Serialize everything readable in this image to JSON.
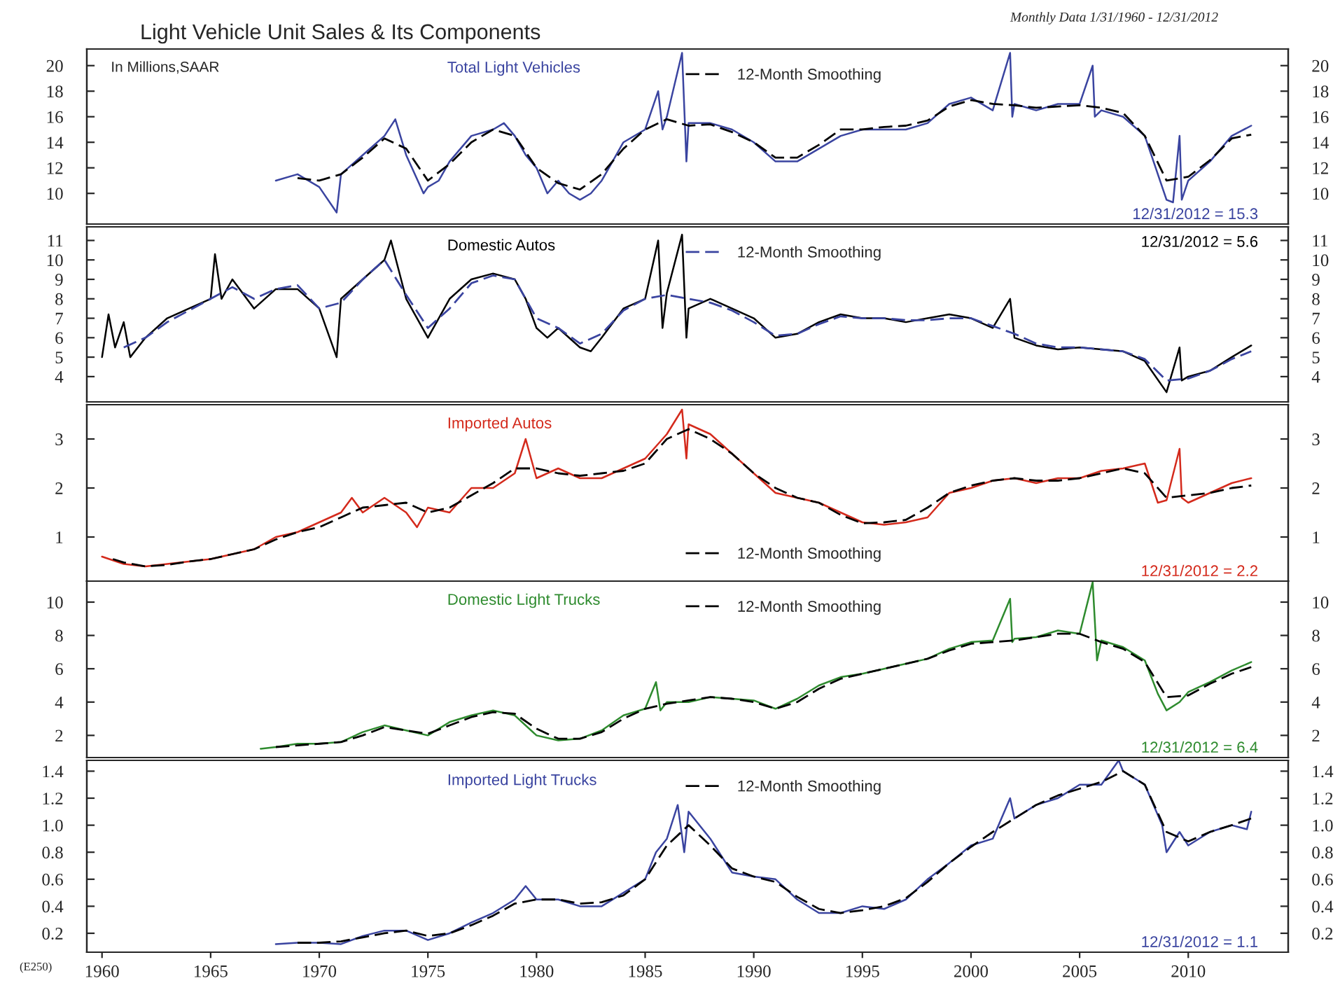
{
  "chart_data": [
    {
      "type": "line",
      "title": "Light Vehicle Unit Sales & Its Components",
      "subtitle": "Monthly Data 1/31/1960 - 12/31/2012",
      "ylabel": "In Millions,SAAR",
      "legend": "top",
      "tick_labels": "y",
      "xlim": [
        1959.3,
        2014.6
      ],
      "xticks": [
        1960,
        1965,
        1970,
        1975,
        1980,
        1985,
        1990,
        1995,
        2000,
        2005,
        2010
      ],
      "ylim": [
        7.6,
        21.3
      ],
      "yticks": [
        10,
        12,
        14,
        16,
        18,
        20
      ],
      "y2lim": [
        7.6,
        21.3
      ],
      "y2ticks": [
        10,
        12,
        14,
        16,
        18,
        20
      ],
      "annotations": [
        "12/31/2012 = 15.3"
      ],
      "series": [
        {
          "name": "Total Light Vehicles",
          "color": "#3a44a0",
          "line_style": "solid",
          "x": [
            1968,
            1969,
            1970,
            1970.8,
            1971,
            1972,
            1973,
            1973.5,
            1974,
            1974.8,
            1975,
            1975.5,
            1976,
            1977,
            1978,
            1978.5,
            1979,
            1979.5,
            1980,
            1980.5,
            1981,
            1981.5,
            1982,
            1982.5,
            1983,
            1983.5,
            1984,
            1985,
            1985.6,
            1985.8,
            1986,
            1986.7,
            1986.9,
            1987,
            1988,
            1989,
            1990,
            1991,
            1992,
            1993,
            1994,
            1995,
            1996,
            1997,
            1998,
            1999,
            2000,
            2001,
            2001.8,
            2001.9,
            2002,
            2003,
            2004,
            2005,
            2005.6,
            2005.7,
            2006,
            2007,
            2008,
            2008.5,
            2009,
            2009.3,
            2009.6,
            2009.7,
            2010,
            2011,
            2012,
            2012.9
          ],
          "values": [
            11.0,
            11.5,
            10.5,
            8.5,
            11.5,
            13,
            14.5,
            15.8,
            13,
            10,
            10.5,
            11,
            12.5,
            14.5,
            15,
            15.5,
            14.5,
            13,
            12,
            10,
            11,
            10,
            9.5,
            10,
            11,
            12.5,
            14,
            15,
            18,
            15,
            16,
            21,
            12.5,
            15.5,
            15.5,
            15,
            14,
            12.5,
            12.5,
            13.5,
            14.5,
            15,
            15,
            15,
            15.5,
            17,
            17.5,
            16.5,
            21,
            16,
            17,
            16.5,
            17,
            17,
            20,
            16,
            16.5,
            16,
            14.5,
            12,
            9.5,
            9.3,
            14.5,
            9.5,
            11,
            12.5,
            14.5,
            15.3
          ]
        },
        {
          "name": "12-Month Smoothing",
          "color": "#000000",
          "line_style": "dashed",
          "x": [
            1969,
            1970,
            1971,
            1972,
            1973,
            1974,
            1975,
            1976,
            1977,
            1978,
            1979,
            1980,
            1981,
            1982,
            1983,
            1984,
            1985,
            1986,
            1987,
            1988,
            1989,
            1990,
            1991,
            1992,
            1993,
            1994,
            1995,
            1996,
            1997,
            1998,
            1999,
            2000,
            2001,
            2002,
            2003,
            2004,
            2005,
            2006,
            2007,
            2008,
            2009,
            2010,
            2011,
            2012,
            2012.9
          ],
          "values": [
            11.2,
            11,
            11.5,
            12.8,
            14.3,
            13.5,
            11,
            12.3,
            14,
            15,
            14.5,
            12,
            10.8,
            10.3,
            11.5,
            13.5,
            15,
            15.8,
            15.3,
            15.4,
            14.8,
            14,
            12.8,
            12.8,
            13.8,
            15,
            15,
            15.2,
            15.3,
            15.7,
            16.8,
            17.3,
            17,
            16.9,
            16.7,
            16.8,
            16.9,
            16.7,
            16.3,
            14.5,
            11,
            11.3,
            12.6,
            14.3,
            14.6
          ]
        }
      ]
    },
    {
      "type": "line",
      "legend": "top",
      "tick_labels": "y",
      "xlim": [
        1959.3,
        2014.6
      ],
      "xticks": [
        1960,
        1965,
        1970,
        1975,
        1980,
        1985,
        1990,
        1995,
        2000,
        2005,
        2010
      ],
      "ylim": [
        2.7,
        11.7
      ],
      "yticks": [
        4,
        5,
        6,
        7,
        8,
        9,
        10,
        11
      ],
      "y2lim": [
        2.7,
        11.7
      ],
      "y2ticks": [
        4,
        5,
        6,
        7,
        8,
        9,
        10,
        11
      ],
      "annotations": [
        "12/31/2012 = 5.6"
      ],
      "series": [
        {
          "name": "Domestic Autos",
          "color": "#000000",
          "line_style": "solid",
          "x": [
            1960,
            1960.3,
            1960.6,
            1961,
            1961.3,
            1962,
            1963,
            1964,
            1965,
            1965.2,
            1965.5,
            1966,
            1967,
            1968,
            1969,
            1970,
            1970.8,
            1971,
            1972,
            1973,
            1973.3,
            1974,
            1974.5,
            1975,
            1975.5,
            1976,
            1977,
            1978,
            1979,
            1979.5,
            1980,
            1980.5,
            1981,
            1982,
            1982.5,
            1983,
            1984,
            1985,
            1985.6,
            1985.8,
            1986,
            1986.7,
            1986.9,
            1987,
            1988,
            1989,
            1990,
            1991,
            1992,
            1993,
            1994,
            1995,
            1996,
            1997,
            1998,
            1999,
            2000,
            2001,
            2001.8,
            2002,
            2003,
            2004,
            2005,
            2006,
            2007,
            2008,
            2009,
            2009.6,
            2009.7,
            2010,
            2011,
            2012,
            2012.9
          ],
          "values": [
            5.0,
            7.2,
            5.5,
            6.8,
            5,
            6,
            7,
            7.5,
            8,
            10.3,
            8,
            9,
            7.5,
            8.5,
            8.5,
            7.5,
            5,
            8,
            9,
            10,
            11,
            8,
            7,
            6,
            7,
            8,
            9,
            9.3,
            9,
            8,
            6.5,
            6,
            6.5,
            5.5,
            5.3,
            6,
            7.5,
            8,
            11,
            6.5,
            8.3,
            11.3,
            6,
            7.5,
            8,
            7.5,
            7,
            6,
            6.2,
            6.8,
            7.2,
            7,
            7,
            6.8,
            7,
            7.2,
            7,
            6.5,
            8,
            6,
            5.6,
            5.4,
            5.5,
            5.4,
            5.3,
            4.8,
            3.2,
            5.5,
            3.8,
            4,
            4.3,
            5,
            5.6
          ]
        },
        {
          "name": "12-Month Smoothing",
          "color": "#3a44a0",
          "line_style": "dashed",
          "x": [
            1961,
            1962,
            1963,
            1964,
            1965,
            1966,
            1967,
            1968,
            1969,
            1970,
            1971,
            1972,
            1973,
            1974,
            1975,
            1976,
            1977,
            1978,
            1979,
            1980,
            1981,
            1982,
            1983,
            1984,
            1985,
            1986,
            1987,
            1988,
            1989,
            1990,
            1991,
            1992,
            1993,
            1994,
            1995,
            1996,
            1997,
            1998,
            1999,
            2000,
            2001,
            2002,
            2003,
            2004,
            2005,
            2006,
            2007,
            2008,
            2009,
            2010,
            2011,
            2012,
            2012.9
          ],
          "values": [
            5.5,
            6,
            6.8,
            7.4,
            8,
            8.6,
            8,
            8.5,
            8.7,
            7.5,
            7.8,
            9,
            10,
            8.2,
            6.5,
            7.5,
            8.8,
            9.2,
            9,
            7,
            6.5,
            5.7,
            6.2,
            7.4,
            8,
            8.2,
            8,
            7.8,
            7.4,
            6.8,
            6.1,
            6.2,
            6.7,
            7.1,
            7,
            7,
            6.9,
            6.9,
            7,
            7,
            6.6,
            6.2,
            5.7,
            5.5,
            5.5,
            5.4,
            5.3,
            4.9,
            3.8,
            3.9,
            4.3,
            4.9,
            5.3
          ]
        }
      ]
    },
    {
      "type": "line",
      "legend": "bottom",
      "tick_labels": "y",
      "xlim": [
        1959.3,
        2014.6
      ],
      "xticks": [
        1960,
        1965,
        1970,
        1975,
        1980,
        1985,
        1990,
        1995,
        2000,
        2005,
        2010
      ],
      "ylim": [
        0.1,
        3.7
      ],
      "yticks": [
        1,
        2,
        3
      ],
      "y2lim": [
        0.1,
        3.7
      ],
      "y2ticks": [
        1,
        2,
        3
      ],
      "annotations": [
        "12/31/2012 = 2.2"
      ],
      "series": [
        {
          "name": "Imported Autos",
          "color": "#d42a1c",
          "line_style": "solid",
          "x": [
            1960,
            1961,
            1962,
            1963,
            1964,
            1965,
            1966,
            1967,
            1968,
            1969,
            1970,
            1971,
            1971.5,
            1972,
            1973,
            1974,
            1974.5,
            1975,
            1976,
            1977,
            1978,
            1979,
            1979.5,
            1980,
            1981,
            1982,
            1983,
            1984,
            1985,
            1986,
            1986.7,
            1986.9,
            1987,
            1988,
            1989,
            1990,
            1991,
            1992,
            1993,
            1994,
            1995,
            1996,
            1997,
            1998,
            1999,
            2000,
            2001,
            2002,
            2003,
            2004,
            2005,
            2006,
            2007,
            2008,
            2008.6,
            2009,
            2009.6,
            2009.7,
            2010,
            2011,
            2012,
            2012.9
          ],
          "values": [
            0.6,
            0.45,
            0.4,
            0.45,
            0.5,
            0.55,
            0.65,
            0.75,
            1.0,
            1.1,
            1.3,
            1.5,
            1.8,
            1.5,
            1.8,
            1.5,
            1.2,
            1.6,
            1.5,
            2.0,
            2.0,
            2.3,
            3.0,
            2.2,
            2.4,
            2.2,
            2.2,
            2.4,
            2.6,
            3.1,
            3.6,
            2.6,
            3.3,
            3.1,
            2.7,
            2.3,
            1.9,
            1.8,
            1.7,
            1.5,
            1.3,
            1.25,
            1.3,
            1.4,
            1.9,
            2.0,
            2.15,
            2.2,
            2.1,
            2.2,
            2.2,
            2.35,
            2.4,
            2.5,
            1.7,
            1.75,
            2.8,
            1.8,
            1.7,
            1.9,
            2.1,
            2.2
          ]
        },
        {
          "name": "12-Month Smoothing",
          "color": "#000000",
          "line_style": "dashed",
          "x": [
            1960.5,
            1961,
            1962,
            1963,
            1964,
            1965,
            1966,
            1967,
            1968,
            1969,
            1970,
            1971,
            1972,
            1973,
            1974,
            1975,
            1976,
            1977,
            1978,
            1979,
            1980,
            1981,
            1982,
            1983,
            1984,
            1985,
            1986,
            1987,
            1988,
            1989,
            1990,
            1991,
            1992,
            1993,
            1994,
            1995,
            1996,
            1997,
            1998,
            1999,
            2000,
            2001,
            2002,
            2003,
            2004,
            2005,
            2006,
            2007,
            2008,
            2009,
            2010,
            2011,
            2012,
            2012.9
          ],
          "values": [
            0.55,
            0.48,
            0.4,
            0.43,
            0.5,
            0.55,
            0.65,
            0.75,
            0.95,
            1.1,
            1.2,
            1.4,
            1.6,
            1.65,
            1.7,
            1.5,
            1.6,
            1.85,
            2.1,
            2.4,
            2.4,
            2.3,
            2.25,
            2.3,
            2.35,
            2.5,
            3.0,
            3.2,
            3.0,
            2.7,
            2.3,
            2.0,
            1.8,
            1.7,
            1.45,
            1.28,
            1.3,
            1.35,
            1.6,
            1.9,
            2.05,
            2.15,
            2.2,
            2.15,
            2.15,
            2.2,
            2.3,
            2.4,
            2.3,
            1.8,
            1.85,
            1.9,
            2.0,
            2.05
          ]
        }
      ]
    },
    {
      "type": "line",
      "legend": "top",
      "tick_labels": "y",
      "xlim": [
        1959.3,
        2014.6
      ],
      "xticks": [
        1960,
        1965,
        1970,
        1975,
        1980,
        1985,
        1990,
        1995,
        2000,
        2005,
        2010
      ],
      "ylim": [
        0.67,
        11.26
      ],
      "yticks": [
        2,
        4,
        6,
        8,
        10
      ],
      "y2lim": [
        0.67,
        11.26
      ],
      "y2ticks": [
        2,
        4,
        6,
        8,
        10
      ],
      "annotations": [
        "12/31/2012 = 6.4"
      ],
      "series": [
        {
          "name": "Domestic Light Trucks",
          "color": "#2e8b2e",
          "line_style": "solid",
          "x": [
            1967.3,
            1968,
            1969,
            1970,
            1971,
            1972,
            1973,
            1974,
            1975,
            1976,
            1977,
            1978,
            1979,
            1980,
            1981,
            1982,
            1983,
            1984,
            1985,
            1985.5,
            1985.7,
            1986,
            1987,
            1988,
            1989,
            1990,
            1991,
            1992,
            1993,
            1994,
            1995,
            1996,
            1997,
            1998,
            1999,
            2000,
            2001,
            2001.8,
            2001.9,
            2002,
            2003,
            2004,
            2005,
            2005.6,
            2005.8,
            2006,
            2007,
            2008,
            2008.6,
            2009,
            2009.6,
            2010,
            2011,
            2012,
            2012.9
          ],
          "values": [
            1.2,
            1.3,
            1.5,
            1.5,
            1.6,
            2.2,
            2.6,
            2.3,
            2.0,
            2.8,
            3.2,
            3.5,
            3.2,
            2.0,
            1.7,
            1.8,
            2.3,
            3.2,
            3.6,
            5.2,
            3.5,
            4,
            4,
            4.3,
            4.2,
            4.1,
            3.6,
            4.2,
            5,
            5.5,
            5.7,
            6,
            6.3,
            6.6,
            7.2,
            7.6,
            7.7,
            10.2,
            7.6,
            7.8,
            7.9,
            8.3,
            8.1,
            11.2,
            6.5,
            7.7,
            7.3,
            6.5,
            4.5,
            3.5,
            4.0,
            4.6,
            5.2,
            5.9,
            6.4
          ]
        },
        {
          "name": "12-Month Smoothing",
          "color": "#000000",
          "line_style": "dashed",
          "x": [
            1968,
            1970,
            1971,
            1972,
            1973,
            1974,
            1975,
            1976,
            1977,
            1978,
            1979,
            1980,
            1981,
            1982,
            1983,
            1984,
            1985,
            1986,
            1987,
            1988,
            1989,
            1990,
            1991,
            1992,
            1993,
            1994,
            1995,
            1996,
            1997,
            1998,
            1999,
            2000,
            2001,
            2002,
            2003,
            2004,
            2005,
            2006,
            2007,
            2008,
            2009,
            2010,
            2011,
            2012,
            2012.9
          ],
          "values": [
            1.3,
            1.5,
            1.6,
            2.0,
            2.5,
            2.3,
            2.1,
            2.6,
            3.1,
            3.4,
            3.3,
            2.4,
            1.8,
            1.8,
            2.2,
            3.0,
            3.6,
            3.9,
            4.1,
            4.3,
            4.2,
            4.0,
            3.6,
            4.0,
            4.8,
            5.4,
            5.7,
            6.0,
            6.3,
            6.6,
            7.1,
            7.5,
            7.6,
            7.7,
            7.9,
            8.1,
            8.1,
            7.6,
            7.2,
            6.4,
            4.3,
            4.4,
            5.1,
            5.7,
            6.1
          ]
        }
      ]
    },
    {
      "type": "line",
      "legend": "top",
      "tick_labels": [
        "x",
        "y"
      ],
      "xlim": [
        1959.3,
        2014.6
      ],
      "xticks": [
        1960,
        1965,
        1970,
        1975,
        1980,
        1985,
        1990,
        1995,
        2000,
        2005,
        2010
      ],
      "ylim": [
        0.06,
        1.48
      ],
      "yticks": [
        {
          "value": 0.2,
          "label": "0.2"
        },
        {
          "value": 0.4,
          "label": "0.4"
        },
        {
          "value": 0.6,
          "label": "0.6"
        },
        {
          "value": 0.8,
          "label": "0.8"
        },
        {
          "value": 1.0,
          "label": "1.0"
        },
        {
          "value": 1.2,
          "label": "1.2"
        },
        {
          "value": 1.4,
          "label": "1.4"
        }
      ],
      "y2lim": [
        0.06,
        1.48
      ],
      "y2ticks": [
        {
          "value": 0.2,
          "label": "0.2"
        },
        {
          "value": 0.4,
          "label": "0.4"
        },
        {
          "value": 0.6,
          "label": "0.6"
        },
        {
          "value": 0.8,
          "label": "0.8"
        },
        {
          "value": 1.0,
          "label": "1.0"
        },
        {
          "value": 1.2,
          "label": "1.2"
        },
        {
          "value": 1.4,
          "label": "1.4"
        }
      ],
      "annotations": [
        "12/31/2012 = 1.1",
        "(E250)"
      ],
      "series": [
        {
          "name": "Imported Light Trucks",
          "color": "#3a44a0",
          "line_style": "solid",
          "x": [
            1968,
            1969,
            1970,
            1971,
            1972,
            1973,
            1974,
            1975,
            1976,
            1977,
            1978,
            1979,
            1979.5,
            1980,
            1981,
            1982,
            1983,
            1984,
            1985,
            1985.5,
            1986,
            1986.5,
            1986.8,
            1987,
            1988,
            1989,
            1990,
            1991,
            1992,
            1993,
            1994,
            1995,
            1996,
            1997,
            1998,
            1999,
            2000,
            2001,
            2001.8,
            2002,
            2003,
            2004,
            2005,
            2006,
            2006.8,
            2007,
            2008,
            2008.8,
            2009,
            2009.6,
            2010,
            2011,
            2012,
            2012.7,
            2012.9
          ],
          "values": [
            0.12,
            0.13,
            0.13,
            0.12,
            0.18,
            0.22,
            0.22,
            0.15,
            0.2,
            0.28,
            0.35,
            0.45,
            0.55,
            0.45,
            0.45,
            0.4,
            0.4,
            0.5,
            0.6,
            0.8,
            0.9,
            1.15,
            0.8,
            1.1,
            0.9,
            0.65,
            0.62,
            0.6,
            0.45,
            0.35,
            0.35,
            0.4,
            0.38,
            0.45,
            0.6,
            0.72,
            0.85,
            0.9,
            1.2,
            1.05,
            1.15,
            1.2,
            1.3,
            1.3,
            1.48,
            1.4,
            1.3,
            1.0,
            0.8,
            0.95,
            0.85,
            0.95,
            1.0,
            0.97,
            1.1
          ]
        },
        {
          "name": "12-Month Smoothing",
          "color": "#000000",
          "line_style": "dashed",
          "x": [
            1969,
            1970,
            1971,
            1972,
            1973,
            1974,
            1975,
            1976,
            1977,
            1978,
            1979,
            1980,
            1981,
            1982,
            1983,
            1984,
            1985,
            1986,
            1987,
            1988,
            1989,
            1990,
            1991,
            1992,
            1993,
            1994,
            1995,
            1996,
            1997,
            1998,
            1999,
            2000,
            2001,
            2002,
            2003,
            2004,
            2005,
            2006,
            2007,
            2008,
            2009,
            2010,
            2011,
            2012,
            2012.9
          ],
          "values": [
            0.13,
            0.13,
            0.14,
            0.17,
            0.2,
            0.22,
            0.18,
            0.2,
            0.26,
            0.33,
            0.42,
            0.45,
            0.45,
            0.42,
            0.43,
            0.48,
            0.6,
            0.85,
            1.0,
            0.85,
            0.68,
            0.62,
            0.58,
            0.47,
            0.38,
            0.35,
            0.37,
            0.4,
            0.46,
            0.58,
            0.72,
            0.84,
            0.95,
            1.05,
            1.15,
            1.22,
            1.27,
            1.32,
            1.4,
            1.3,
            0.95,
            0.88,
            0.95,
            1.0,
            1.05
          ]
        }
      ]
    }
  ]
}
